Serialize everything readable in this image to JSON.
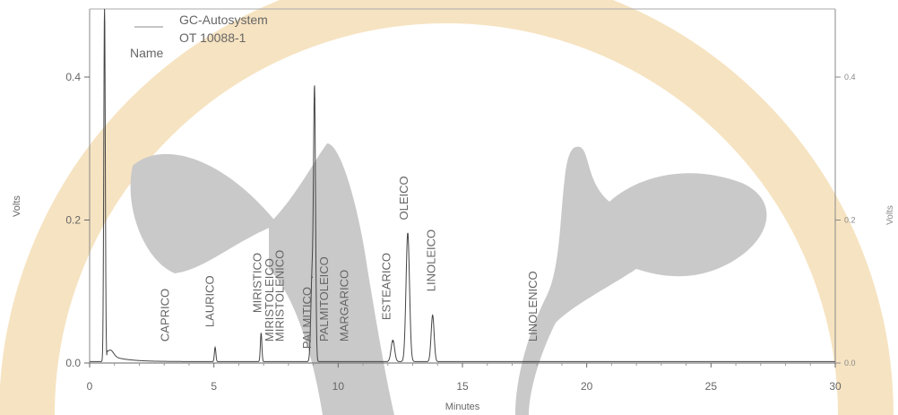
{
  "chart_data": {
    "type": "line",
    "legend": {
      "instrument": "GC-Autosystem",
      "sample": "OT 10088-1",
      "name_label": "Name"
    },
    "xlabel": "Minutes",
    "ylabel_left": "Volts",
    "ylabel_right": "Volts",
    "xlim": [
      0,
      30
    ],
    "ylim": [
      -0.01,
      0.5
    ],
    "x_ticks": [
      0,
      5,
      10,
      15,
      20,
      25,
      30
    ],
    "y_ticks_left": [
      0.0,
      0.2,
      0.4
    ],
    "y_tick_labels_left": [
      "0.0",
      "0.2",
      "0.4"
    ],
    "y_ticks_right": [
      0.0,
      0.2,
      0.4
    ],
    "y_tick_labels_right": [
      "0.0",
      "0.2",
      "0.4"
    ],
    "grid": false,
    "series": [
      {
        "color": "#444444",
        "baseline": 0.002,
        "solvent_front": {
          "x": 0.6,
          "y": 0.5
        },
        "peaks": [
          {
            "x": 5.05,
            "y": 0.02
          },
          {
            "x": 6.9,
            "y": 0.04
          },
          {
            "x": 8.95,
            "y": 0.12
          },
          {
            "x": 9.05,
            "y": 0.37
          },
          {
            "x": 12.2,
            "y": 0.03
          },
          {
            "x": 12.8,
            "y": 0.18
          },
          {
            "x": 13.8,
            "y": 0.065
          }
        ]
      }
    ],
    "annotations": [
      {
        "text": "CAPRICO",
        "x": 3.2,
        "y": 0.03
      },
      {
        "text": "LAURICO",
        "x": 5.0,
        "y": 0.05
      },
      {
        "text": "MIRISTICO",
        "x": 6.9,
        "y": 0.07
      },
      {
        "text": "MIRISTOLEICO",
        "x": 7.4,
        "y": 0.03
      },
      {
        "text": "MIRISTOLENICO",
        "x": 7.8,
        "y": 0.03
      },
      {
        "text": "PALMITICO",
        "x": 8.9,
        "y": 0.02
      },
      {
        "text": "PALMITOLEICO",
        "x": 9.6,
        "y": 0.03
      },
      {
        "text": "MARGARICO",
        "x": 10.4,
        "y": 0.03
      },
      {
        "text": "ESTEARICO",
        "x": 12.1,
        "y": 0.06
      },
      {
        "text": "OLEICO",
        "x": 12.8,
        "y": 0.2
      },
      {
        "text": "LINOLEICO",
        "x": 13.9,
        "y": 0.1
      },
      {
        "text": "LINOLENICO",
        "x": 18.0,
        "y": 0.03
      }
    ]
  },
  "watermark": {
    "ring_color": "#f6e3c1",
    "cow_color": "#c9c9c9"
  }
}
